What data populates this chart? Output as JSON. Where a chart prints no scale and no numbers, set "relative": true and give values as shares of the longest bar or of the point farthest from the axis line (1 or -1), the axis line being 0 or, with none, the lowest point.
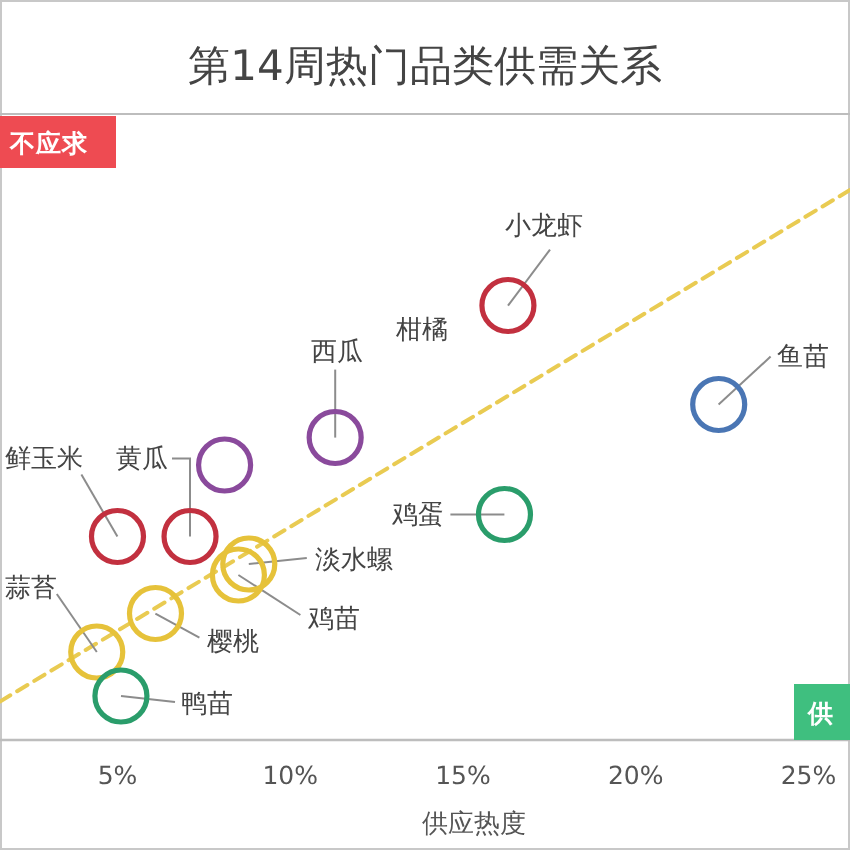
{
  "chart_data": {
    "type": "scatter",
    "title": "第14周热门品类供需关系",
    "xlabel": "供应热度",
    "relative": true,
    "marker": "circle",
    "xlim": [
      1.6,
      26.2
    ],
    "xticks": [
      {
        "value": 5,
        "label": "5%"
      },
      {
        "value": 10,
        "label": "10%"
      },
      {
        "value": 15,
        "label": "15%"
      },
      {
        "value": 20,
        "label": "20%"
      },
      {
        "value": 25,
        "label": "25%"
      }
    ],
    "annotations": [
      "不应求",
      "供",
      "柑橘"
    ],
    "series": [
      {
        "type": "line",
        "color": "#e9cb52",
        "line_style": "dashed",
        "marker": "none",
        "x": [
          1.6,
          26.2
        ],
        "values": [
          0.07,
          1
        ]
      },
      {
        "name": "小龙虾",
        "color": "#c2303f",
        "x": [
          16.3
        ],
        "values": [
          0.79
        ]
      },
      {
        "name": "鱼苗",
        "color": "#4a76b4",
        "x": [
          22.4
        ],
        "values": [
          0.61
        ]
      },
      {
        "name": "西瓜",
        "color": "#8a4a9c",
        "x": [
          11.3
        ],
        "values": [
          0.55
        ]
      },
      {
        "color": "#8a4a9c",
        "x": [
          8.1
        ],
        "values": [
          0.5
        ]
      },
      {
        "name": "鸡蛋",
        "color": "#2a9d6b",
        "x": [
          16.2
        ],
        "values": [
          0.41
        ]
      },
      {
        "name": "鲜玉米",
        "color": "#c2303f",
        "x": [
          5.0
        ],
        "values": [
          0.37
        ]
      },
      {
        "name": "黄瓜",
        "color": "#c2303f",
        "x": [
          7.1
        ],
        "values": [
          0.37
        ]
      },
      {
        "name": "淡水螺",
        "color": "#e6c23a",
        "x": [
          8.8
        ],
        "values": [
          0.32
        ]
      },
      {
        "name": "鸡苗",
        "color": "#e6c23a",
        "x": [
          8.5
        ],
        "values": [
          0.3
        ]
      },
      {
        "name": "樱桃",
        "color": "#e6c23a",
        "x": [
          6.1
        ],
        "values": [
          0.23
        ]
      },
      {
        "name": "蒜苔",
        "color": "#e6c23a",
        "x": [
          4.4
        ],
        "values": [
          0.16
        ]
      },
      {
        "name": "鸭苗",
        "color": "#2a9d6b",
        "x": [
          5.1
        ],
        "values": [
          0.08
        ]
      }
    ]
  }
}
